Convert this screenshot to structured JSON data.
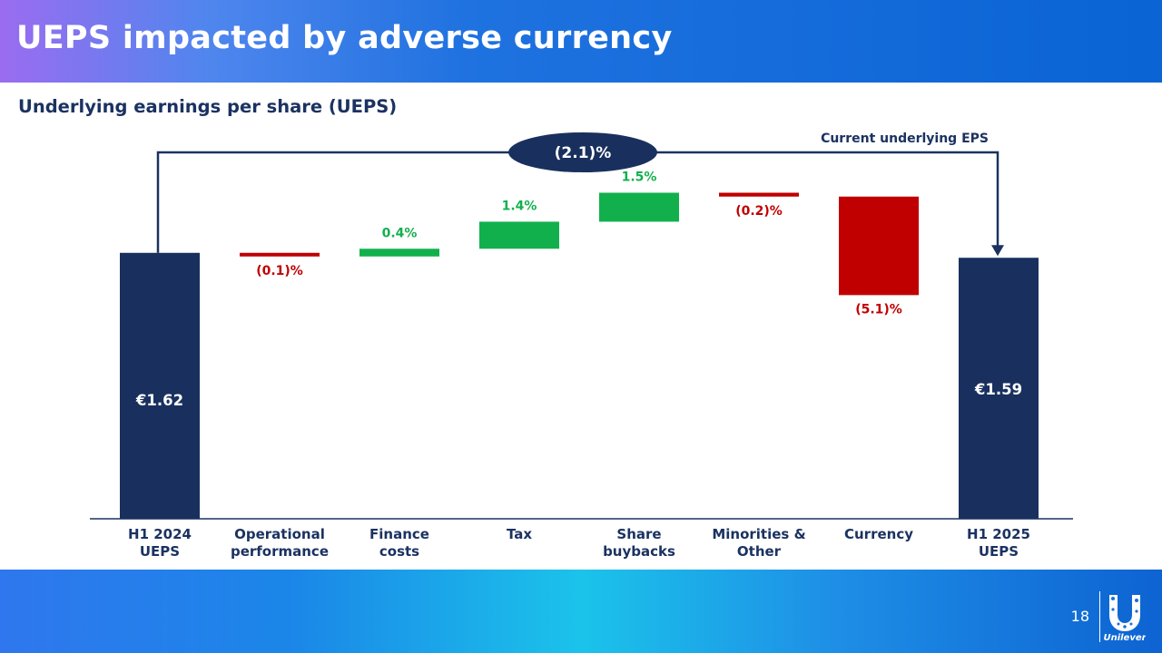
{
  "slide": {
    "title": "UEPS impacted by adverse currency",
    "subtitle": "Underlying earnings per share (UEPS)",
    "page_number": "18",
    "logo_icon": "unilever-logo-icon",
    "brand_text": "Unilever"
  },
  "colors": {
    "total": "#19305e",
    "positive": "#12b04d",
    "negative": "#c00000",
    "label_positive": "#12b04d",
    "label_negative": "#c00000",
    "callout_fill": "#19305e",
    "axis": "#1b3261"
  },
  "chart_data": {
    "type": "waterfall",
    "title": "Underlying earnings per share (UEPS)",
    "categories": [
      "H1 2024\nUEPS",
      "Operational\nperformance",
      "Finance\ncosts",
      "Tax",
      "Share\nbuybacks",
      "Minorities &\nOther",
      "Currency",
      "H1 2025\nUEPS"
    ],
    "values": [
      1.62,
      -0.1,
      0.4,
      1.4,
      1.5,
      -0.2,
      -5.1,
      1.59
    ],
    "units": [
      "EUR",
      "%",
      "%",
      "%",
      "%",
      "%",
      "%",
      "EUR"
    ],
    "kinds": [
      "total",
      "delta",
      "delta",
      "delta",
      "delta",
      "delta",
      "delta",
      "total"
    ],
    "labels": [
      "€1.62",
      "(0.1)%",
      "0.4%",
      "1.4%",
      "1.5%",
      "(0.2)%",
      "(5.1)%",
      "€1.59"
    ],
    "annotation": {
      "label": "Current underlying EPS",
      "value": "(2.1)%",
      "from": "H1 2024\nUEPS",
      "to": "H1 2025\nUEPS"
    },
    "legend": "none",
    "grid": false
  }
}
